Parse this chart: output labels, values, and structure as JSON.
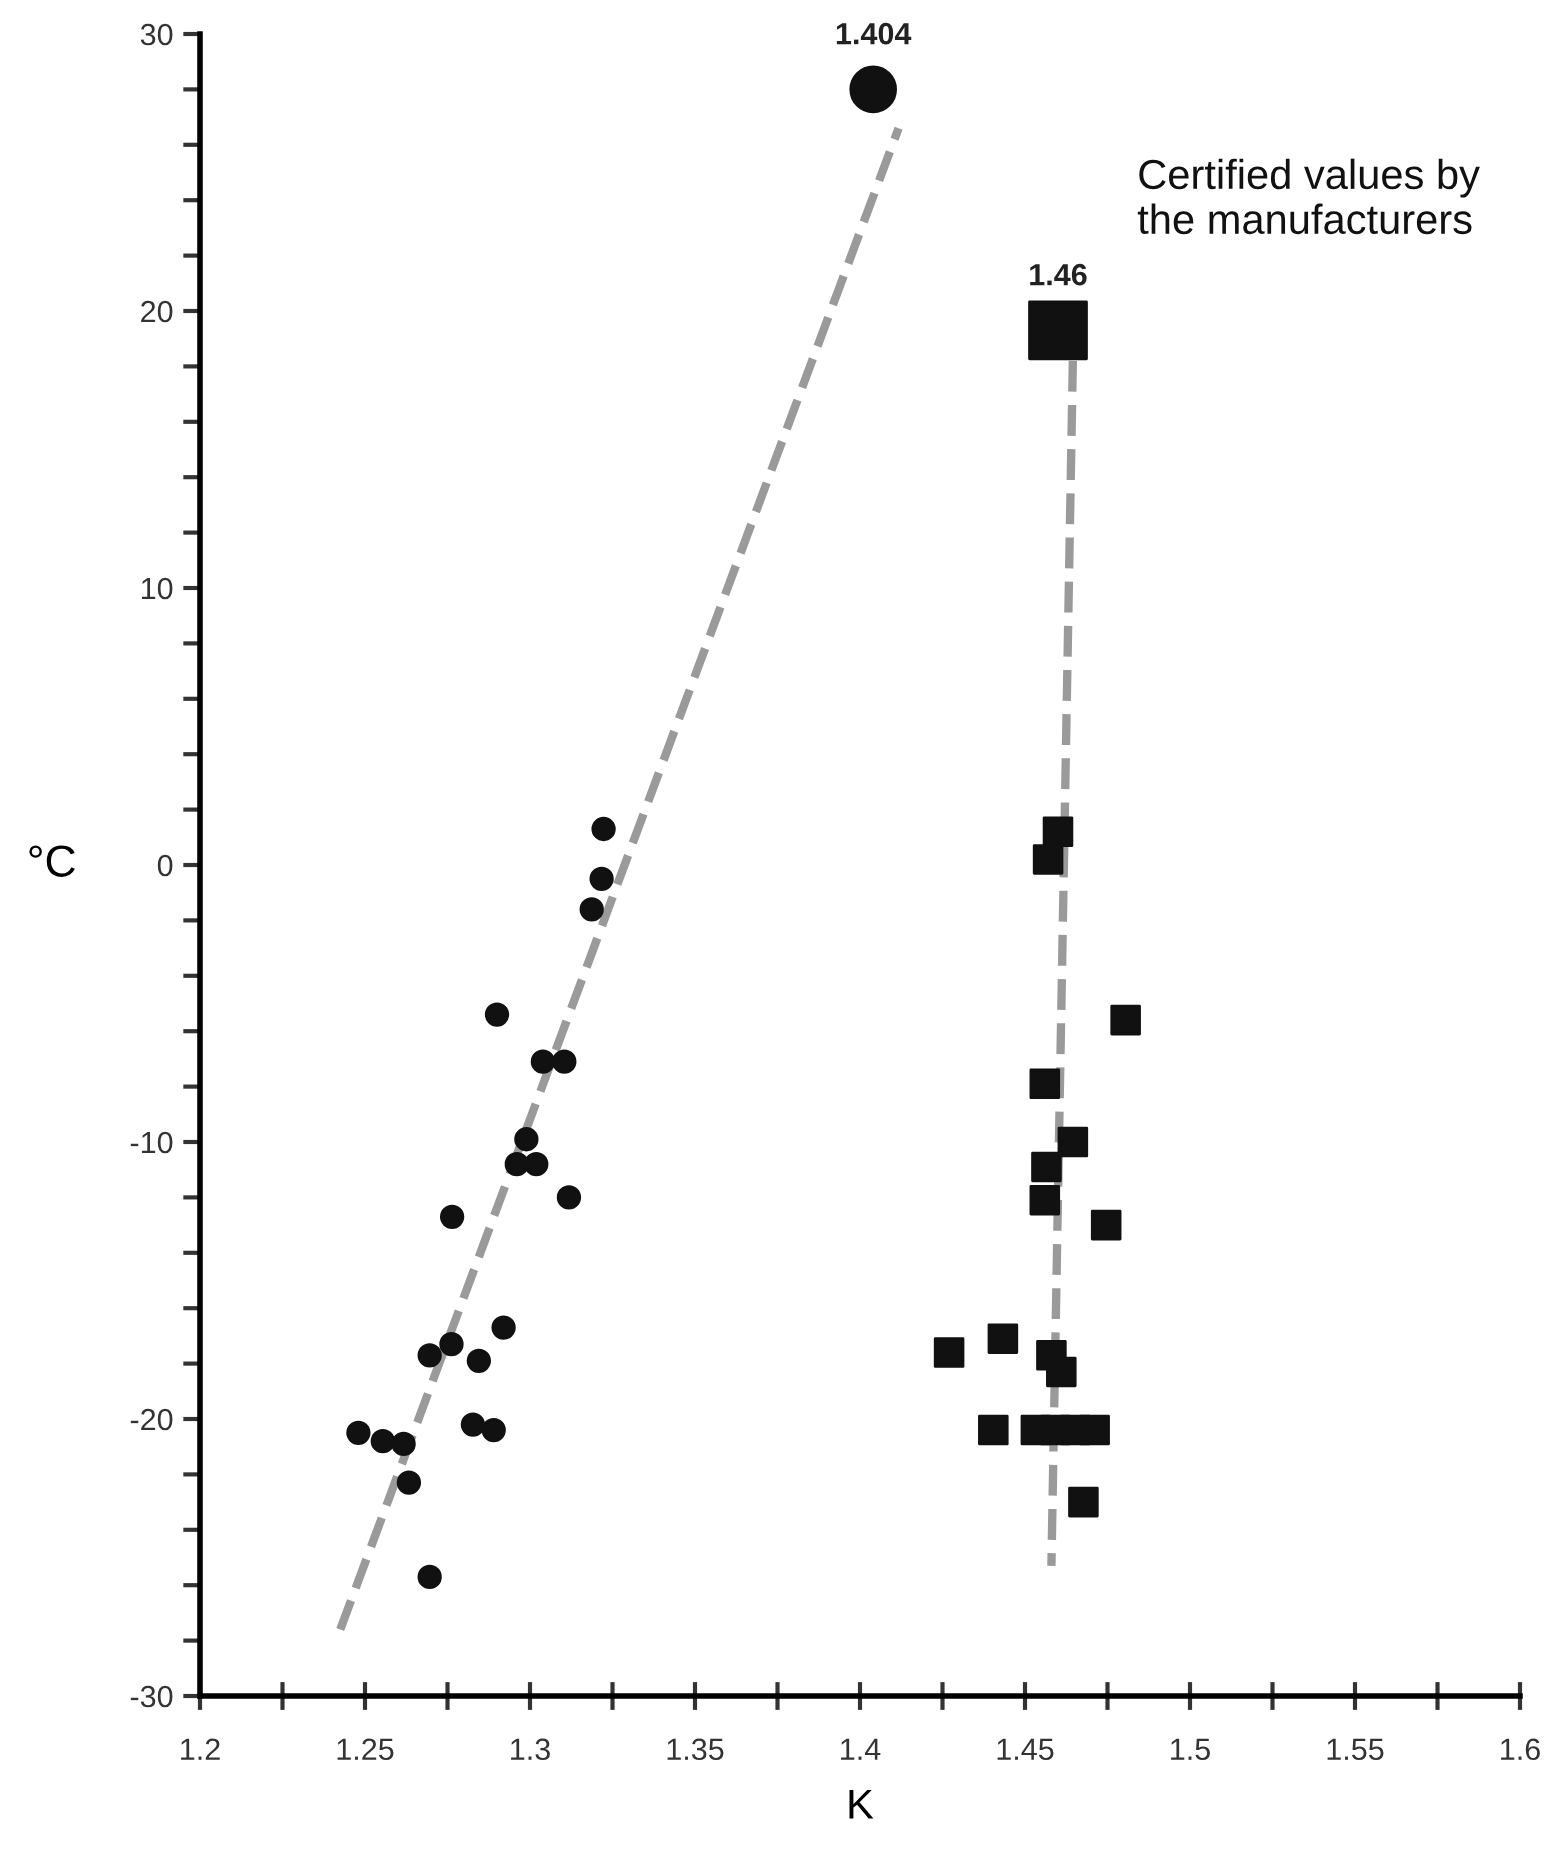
{
  "chart_data": {
    "type": "scatter",
    "xlabel": "K",
    "ylabel": "°C",
    "xlim": [
      1.2,
      1.6
    ],
    "ylim": [
      -30,
      30
    ],
    "xticks": [
      1.2,
      {
        "value": 1.225,
        "label": null
      },
      1.25,
      {
        "value": 1.275,
        "label": null
      },
      1.3,
      {
        "value": 1.325,
        "label": null
      },
      1.35,
      {
        "value": 1.375,
        "label": null
      },
      1.4,
      {
        "value": 1.425,
        "label": null
      },
      1.45,
      {
        "value": 1.475,
        "label": null
      },
      1.5,
      {
        "value": 1.525,
        "label": null
      },
      1.55,
      {
        "value": 1.575,
        "label": null
      },
      1.6
    ],
    "yticks": [
      -30,
      {
        "value": -28,
        "label": null
      },
      {
        "value": -26,
        "label": null
      },
      {
        "value": -24,
        "label": null
      },
      {
        "value": -22,
        "label": null
      },
      -20,
      {
        "value": -18,
        "label": null
      },
      {
        "value": -16,
        "label": null
      },
      {
        "value": -14,
        "label": null
      },
      {
        "value": -12,
        "label": null
      },
      -10,
      {
        "value": -8,
        "label": null
      },
      {
        "value": -6,
        "label": null
      },
      {
        "value": -4,
        "label": null
      },
      {
        "value": -2,
        "label": null
      },
      0,
      {
        "value": 2,
        "label": null
      },
      {
        "value": 4,
        "label": null
      },
      {
        "value": 6,
        "label": null
      },
      {
        "value": 8,
        "label": null
      },
      10,
      {
        "value": 12,
        "label": null
      },
      {
        "value": 14,
        "label": null
      },
      {
        "value": 16,
        "label": null
      },
      {
        "value": 18,
        "label": null
      },
      20,
      {
        "value": 22,
        "label": null
      },
      {
        "value": 24,
        "label": null
      },
      {
        "value": 26,
        "label": null
      },
      {
        "value": 28,
        "label": null
      },
      30
    ],
    "grid": false,
    "legend": false,
    "series": [
      {
        "type": "line",
        "color": "#9a9a9a",
        "line_style": "dashed",
        "marker": "none",
        "x": [
          1.2425,
          1.4117
        ],
        "values": [
          -27.6,
          26.6
        ]
      },
      {
        "type": "line",
        "color": "#9a9a9a",
        "line_style": "dashed",
        "marker": "none",
        "x": [
          1.4645,
          1.458
        ],
        "values": [
          18.2,
          -25.3
        ]
      },
      {
        "color": "#111111",
        "marker": "circle",
        "x": [
          1.3223,
          1.3217,
          1.3187,
          1.29,
          1.3039,
          1.3104,
          1.2989,
          1.296,
          1.3019,
          1.3118,
          1.2764,
          1.292,
          1.2762,
          1.2696,
          1.2845,
          1.2827,
          1.289,
          1.248,
          1.2554,
          1.2617,
          1.2633,
          1.2696
        ],
        "values": [
          1.3,
          -0.5,
          -1.6,
          -5.4,
          -7.1,
          -7.1,
          -9.9,
          -10.8,
          -10.8,
          -12.0,
          -12.7,
          -16.7,
          -17.3,
          -17.7,
          -17.9,
          -20.2,
          -20.4,
          -20.5,
          -20.8,
          -20.9,
          -22.3,
          -25.7
        ]
      },
      {
        "color": "#111111",
        "marker": "square",
        "x": [
          1.46,
          1.457,
          1.4805,
          1.456,
          1.4645,
          1.4565,
          1.456,
          1.4746,
          1.427,
          1.4433,
          1.458,
          1.461,
          1.4404,
          1.4533,
          1.4592,
          1.4652,
          1.4711,
          1.4677
        ],
        "values": [
          1.2,
          0.2,
          -5.6,
          -7.9,
          -10.0,
          -10.9,
          -12.1,
          -13.0,
          -17.6,
          -17.1,
          -17.7,
          -18.3,
          -20.4,
          -20.4,
          -20.4,
          -20.4,
          -20.4,
          -23.0
        ]
      },
      {
        "color": "#111111",
        "marker": "circle",
        "x": [
          1.404
        ],
        "values": [
          28
        ]
      },
      {
        "color": "#111111",
        "marker": "square",
        "x": [
          1.46
        ],
        "values": [
          19.3
        ]
      }
    ],
    "annotations": [
      {
        "text": "1.404",
        "x": 1.404,
        "y": 28
      },
      {
        "text": "1.46",
        "x": 1.46,
        "y": 19.3
      },
      "Certified values by\nthe manufacturers"
    ]
  }
}
